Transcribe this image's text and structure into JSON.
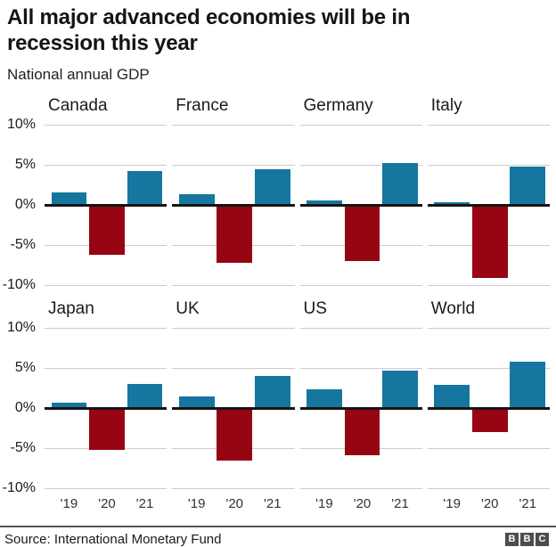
{
  "header": {
    "title": "All major advanced economies will be in recession this year",
    "subtitle": "National annual GDP"
  },
  "footer": {
    "source": "Source: International Monetary Fund",
    "logo_blocks": [
      "B",
      "B",
      "C"
    ]
  },
  "colors": {
    "positive_bar": "#1576a0",
    "negative_bar": "#970512",
    "zero_line": "#141414",
    "gridline": "#cccccc"
  },
  "chart_data": {
    "type": "bar",
    "title": "All major advanced economies will be in recession this year",
    "subtitle": "National annual GDP",
    "categories": [
      "'19",
      "'20",
      "'21"
    ],
    "y_ticks": [
      "10%",
      "5%",
      "0%",
      "-5%",
      "-10%"
    ],
    "ylim": [
      -10,
      10
    ],
    "grid": true,
    "unit": "%",
    "series": [
      {
        "name": "Canada",
        "values": [
          1.6,
          -6.2,
          4.2
        ]
      },
      {
        "name": "France",
        "values": [
          1.3,
          -7.2,
          4.5
        ]
      },
      {
        "name": "Germany",
        "values": [
          0.6,
          -7.0,
          5.2
        ]
      },
      {
        "name": "Italy",
        "values": [
          0.3,
          -9.1,
          4.8
        ]
      },
      {
        "name": "Japan",
        "values": [
          0.7,
          -5.2,
          3.0
        ]
      },
      {
        "name": "UK",
        "values": [
          1.4,
          -6.5,
          4.0
        ]
      },
      {
        "name": "US",
        "values": [
          2.3,
          -5.9,
          4.7
        ]
      },
      {
        "name": "World",
        "values": [
          2.9,
          -3.0,
          5.8
        ]
      }
    ],
    "rows": [
      [
        "Canada",
        "France",
        "Germany",
        "Italy"
      ],
      [
        "Japan",
        "UK",
        "US",
        "World"
      ]
    ]
  }
}
